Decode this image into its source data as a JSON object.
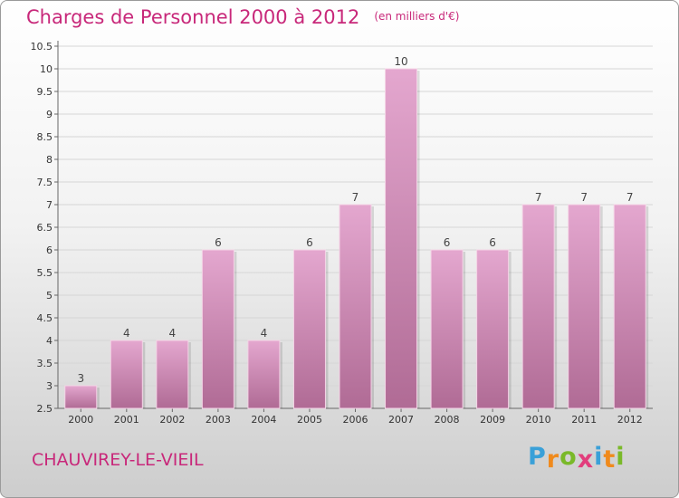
{
  "title": "Charges de Personnel 2000 à 2012",
  "subtitle": "(en milliers d'€)",
  "place": "CHAUVIREY-LE-VIEIL",
  "logo": {
    "letters": [
      "P",
      "r",
      "o",
      "x",
      "i",
      "t",
      "i"
    ],
    "colors": [
      "#3aa0d8",
      "#f08a1c",
      "#7ab929",
      "#e23d7c",
      "#3aa0d8",
      "#f08a1c",
      "#7ab929"
    ]
  },
  "colors": {
    "title": "#c8287a",
    "bar_top": "#e4a7cf",
    "bar_bottom": "#b06b95"
  },
  "chart_data": {
    "type": "bar",
    "categories": [
      "2000",
      "2001",
      "2002",
      "2003",
      "2004",
      "2005",
      "2006",
      "2007",
      "2008",
      "2009",
      "2010",
      "2011",
      "2012"
    ],
    "values": [
      3,
      4,
      4,
      6,
      4,
      6,
      7,
      10,
      6,
      6,
      7,
      7,
      7
    ],
    "ylim": [
      2.5,
      10.5
    ],
    "yticks": [
      "2.5",
      "3",
      "3.5",
      "4",
      "4.5",
      "5",
      "5.5",
      "6",
      "6.5",
      "7",
      "7.5",
      "8",
      "8.5",
      "9",
      "9.5",
      "10",
      "10.5"
    ],
    "grid": true
  }
}
